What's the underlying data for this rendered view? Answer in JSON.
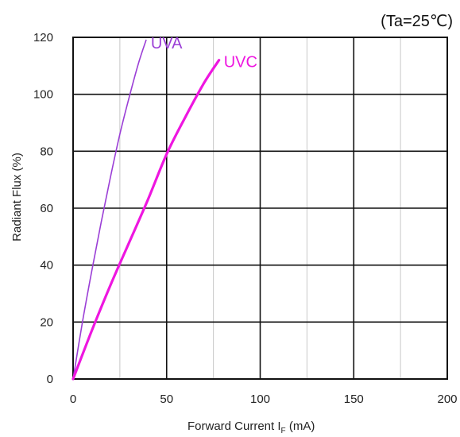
{
  "condition": "(Ta=25℃)",
  "chart_data": {
    "type": "line",
    "xlabel": "Forward Current I",
    "xlabel_sub": "F",
    "xlabel_unit": " (mA)",
    "ylabel": "Radiant Flux (%)",
    "xlim": [
      0,
      200
    ],
    "ylim": [
      0,
      120
    ],
    "x_ticks": [
      0,
      50,
      100,
      150,
      200
    ],
    "y_ticks": [
      0,
      20,
      40,
      60,
      80,
      100,
      120
    ],
    "grid": true,
    "series": [
      {
        "name": "UVA",
        "color": "#9b3fd6",
        "x": [
          0,
          5,
          10,
          15,
          20,
          25,
          30,
          35,
          39
        ],
        "y": [
          0,
          20,
          38,
          55,
          71,
          86,
          99,
          111,
          119
        ]
      },
      {
        "name": "UVC",
        "color": "#ee16e0",
        "x": [
          0,
          10,
          20,
          30,
          40,
          50,
          60,
          70,
          78
        ],
        "y": [
          0,
          17,
          33,
          48,
          63,
          79,
          92,
          104,
          112
        ]
      }
    ]
  }
}
